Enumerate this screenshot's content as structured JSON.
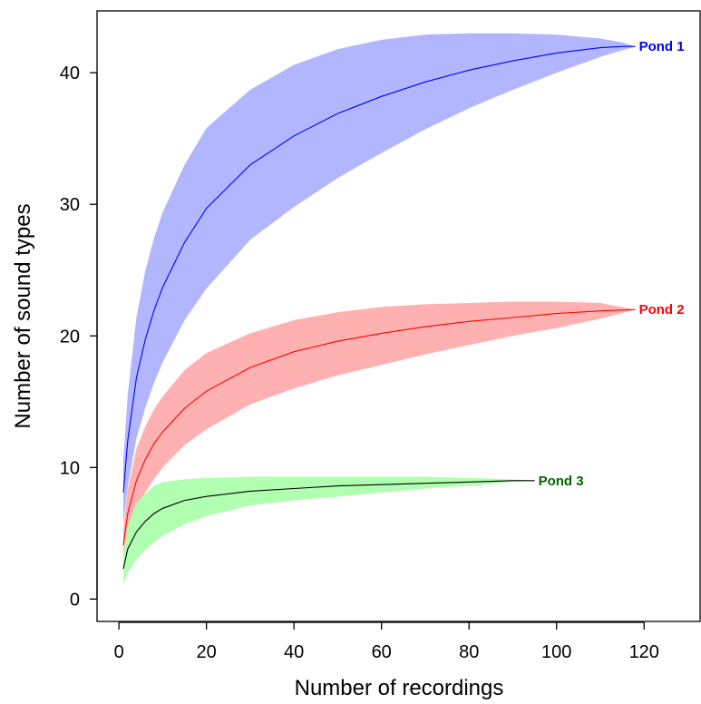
{
  "chart_data": {
    "type": "area",
    "title": "",
    "xlabel": "Number of recordings",
    "ylabel": "Number of sound types",
    "xlim": [
      -5,
      133
    ],
    "ylim": [
      -1.7,
      44.7
    ],
    "xticks": [
      0,
      20,
      40,
      60,
      80,
      100,
      120
    ],
    "yticks": [
      0,
      10,
      20,
      30,
      40
    ],
    "grid": false,
    "legend": "none",
    "series": [
      {
        "name": "Pond 1",
        "line_color": "#0000ff",
        "band_color": "#aab0ff",
        "label_color": "#0000ff",
        "x": [
          1,
          2,
          4,
          6,
          8,
          10,
          15,
          20,
          30,
          40,
          50,
          60,
          70,
          80,
          90,
          100,
          110,
          115,
          118
        ],
        "y": [
          8.1,
          12.0,
          16.8,
          19.7,
          21.9,
          23.7,
          27.1,
          29.7,
          33.0,
          35.2,
          36.9,
          38.2,
          39.3,
          40.2,
          40.9,
          41.5,
          41.9,
          42.0,
          42.0
        ],
        "lower": [
          5.7,
          8.5,
          12.2,
          14.5,
          16.4,
          18.0,
          21.2,
          23.6,
          27.3,
          29.8,
          32.0,
          33.9,
          35.7,
          37.3,
          38.7,
          40.0,
          41.2,
          41.7,
          42.0
        ],
        "upper": [
          10.5,
          15.5,
          21.4,
          24.9,
          27.4,
          29.4,
          33.0,
          35.8,
          38.7,
          40.6,
          41.8,
          42.5,
          42.9,
          43.0,
          43.0,
          42.9,
          42.6,
          42.3,
          42.0
        ]
      },
      {
        "name": "Pond 2",
        "line_color": "#ff0000",
        "band_color": "#ffaaaa",
        "label_color": "#ff0000",
        "x": [
          1,
          2,
          4,
          6,
          8,
          10,
          15,
          20,
          30,
          40,
          50,
          60,
          70,
          80,
          90,
          100,
          110,
          118
        ],
        "y": [
          4.1,
          6.5,
          9.0,
          10.6,
          11.8,
          12.7,
          14.5,
          15.8,
          17.6,
          18.8,
          19.6,
          20.2,
          20.7,
          21.1,
          21.4,
          21.7,
          21.9,
          22.0
        ],
        "lower": [
          2.9,
          4.7,
          6.8,
          8.1,
          9.1,
          10.0,
          11.7,
          12.9,
          14.8,
          16.0,
          17.0,
          17.8,
          18.6,
          19.3,
          20.0,
          20.6,
          21.3,
          22.0
        ],
        "upper": [
          5.3,
          8.3,
          11.4,
          13.1,
          14.4,
          15.4,
          17.4,
          18.7,
          20.2,
          21.2,
          21.8,
          22.2,
          22.4,
          22.5,
          22.6,
          22.6,
          22.5,
          22.0
        ]
      },
      {
        "name": "Pond 3",
        "line_color": "#000000",
        "band_color": "#aaffaa",
        "label_color": "#006400",
        "x": [
          1,
          2,
          4,
          6,
          8,
          10,
          15,
          20,
          30,
          40,
          50,
          60,
          70,
          80,
          90,
          95
        ],
        "y": [
          2.3,
          3.8,
          5.1,
          5.9,
          6.5,
          6.9,
          7.5,
          7.8,
          8.2,
          8.4,
          8.6,
          8.7,
          8.8,
          8.9,
          9.0,
          9.0
        ],
        "lower": [
          1.1,
          2.0,
          3.0,
          3.7,
          4.3,
          4.8,
          5.7,
          6.3,
          7.1,
          7.5,
          7.8,
          8.1,
          8.4,
          8.6,
          8.9,
          9.0
        ],
        "upper": [
          3.5,
          5.6,
          7.3,
          8.0,
          8.6,
          8.9,
          9.1,
          9.2,
          9.3,
          9.3,
          9.3,
          9.3,
          9.3,
          9.2,
          9.1,
          9.0
        ]
      }
    ]
  }
}
